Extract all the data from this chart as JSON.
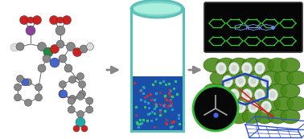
{
  "background_color": "#ffffff",
  "arrow_color": "#888888",
  "vial_color": "#5abfb5",
  "vial_fill_color": "#1a4faa",
  "dot_colors_small": [
    "#cc3333",
    "#3399cc",
    "#33cc66"
  ],
  "dark_box_color": "#080808",
  "green_zeolite": "#4a8a18",
  "green_zeolite_edge": "#2a5a08",
  "blue_hex_color": "#2244bb",
  "red_arrow_color": "#cc2222",
  "crystal_color": "#3355cc",
  "circle_bg": "#0a0a0a",
  "circle_edge": "#33bb33",
  "green_hex_color": "#33cc33",
  "dye_blue_color": "#8899ff",
  "nitro_red": "#cc2222",
  "metal_green": "#228844",
  "boron_cyan": "#22aaaa",
  "carbon_gray": "#999999",
  "nitrogen_blue": "#4466cc",
  "white_atom": "#dddddd"
}
